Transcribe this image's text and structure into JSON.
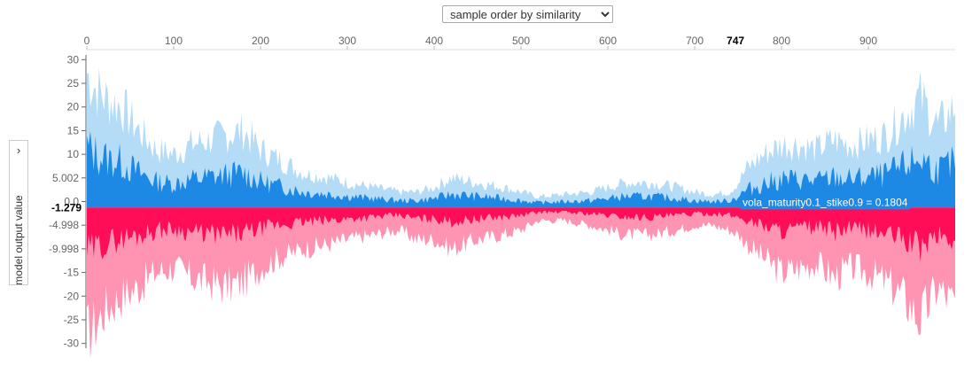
{
  "controls": {
    "sort_options": [
      "sample order by similarity"
    ],
    "sort_selected": "sample order by similarity",
    "collapse_icon": "chevron-right-icon"
  },
  "colors": {
    "positive": "#ff0d57",
    "positive_light": "#ff94b2",
    "negative": "#1e88e5",
    "negative_light": "#b5dcf7",
    "ruler": "#666666"
  },
  "chart_data": {
    "type": "area",
    "ylabel": "model output value",
    "x_ticks": [
      "0",
      "100",
      "200",
      "300",
      "400",
      "500",
      "600",
      "700",
      "800",
      "900"
    ],
    "xlim": [
      0,
      1000
    ],
    "highlight_x": "747",
    "y_ticks": [
      "30",
      "25",
      "20",
      "15",
      "10",
      "5.002",
      "0.0",
      "-4.998",
      "-9.998",
      "-15",
      "-20",
      "-25",
      "-30"
    ],
    "ylim": [
      -31,
      31
    ],
    "highlight_y": "-1.279",
    "highlight_y_value": -1.279,
    "hover_label": "vola_maturity0.1_stike0.9 = 0.1804",
    "series": [
      {
        "name": "negative",
        "x": [
          0,
          10,
          20,
          40,
          60,
          80,
          100,
          120,
          140,
          160,
          180,
          200,
          220,
          250,
          280,
          300,
          330,
          360,
          380,
          400,
          420,
          450,
          480,
          500,
          520,
          550,
          580,
          600,
          620,
          650,
          680,
          700,
          720,
          740,
          750,
          760,
          780,
          800,
          820,
          840,
          860,
          880,
          900,
          920,
          940,
          960,
          980,
          1000
        ],
        "values": [
          27,
          24,
          22,
          20,
          15,
          11,
          10,
          12,
          13,
          14,
          15,
          11,
          9,
          6,
          5,
          4,
          3,
          2,
          2,
          3,
          5,
          4,
          3,
          2,
          1,
          1.5,
          2,
          3,
          4,
          4,
          3,
          2,
          1.5,
          2,
          4,
          7,
          10,
          12,
          12,
          11,
          13,
          12,
          13,
          14,
          18,
          22,
          16,
          20
        ]
      },
      {
        "name": "positive",
        "x": [
          0,
          10,
          20,
          40,
          60,
          80,
          100,
          120,
          140,
          160,
          180,
          200,
          220,
          250,
          280,
          300,
          330,
          360,
          380,
          400,
          420,
          450,
          480,
          500,
          520,
          550,
          580,
          600,
          620,
          650,
          680,
          700,
          720,
          740,
          750,
          760,
          780,
          800,
          820,
          840,
          860,
          880,
          900,
          920,
          940,
          960,
          980,
          1000
        ],
        "values": [
          -28,
          -26,
          -23,
          -20,
          -18,
          -15,
          -14,
          -16,
          -17,
          -18,
          -17,
          -14,
          -12,
          -10,
          -9,
          -8,
          -7,
          -6,
          -8,
          -8,
          -10,
          -8,
          -7,
          -6,
          -4,
          -4,
          -5,
          -6,
          -7,
          -7,
          -6,
          -5,
          -5,
          -6,
          -7,
          -9,
          -12,
          -15,
          -14,
          -13,
          -16,
          -14,
          -15,
          -17,
          -20,
          -25,
          -18,
          -22
        ]
      }
    ]
  }
}
